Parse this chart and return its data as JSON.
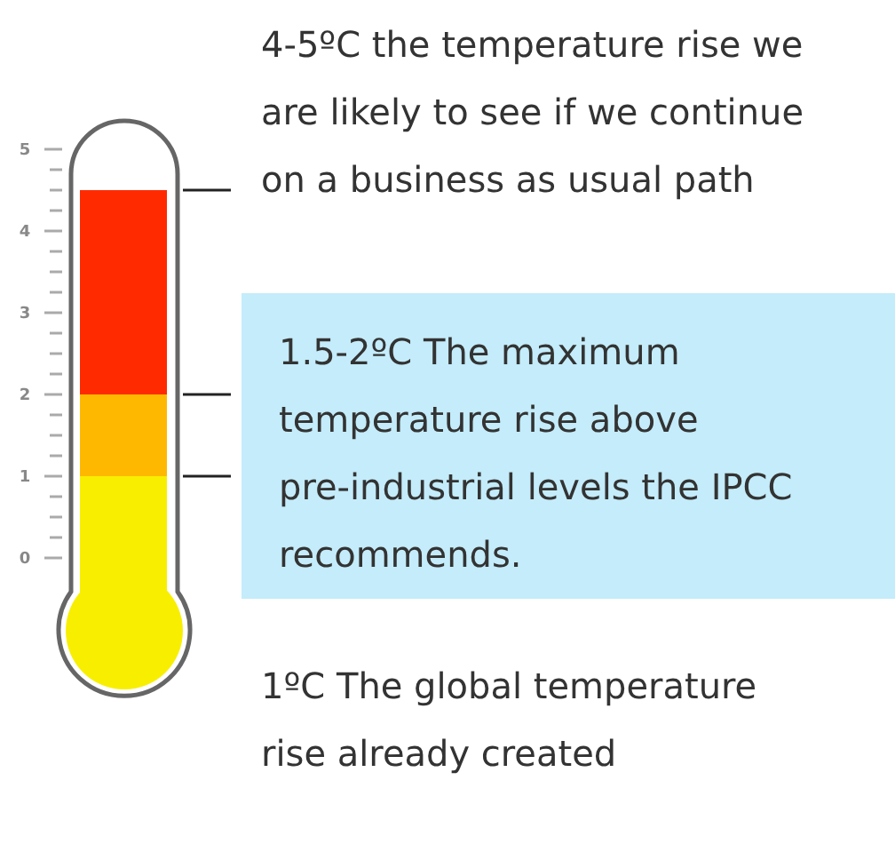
{
  "chart_data": {
    "type": "bar",
    "stacked": true,
    "categories": [
      null
    ],
    "series": [
      {
        "color": "#f8ef00",
        "values": [
          1
        ]
      },
      {
        "color": "#ffb800",
        "values": [
          1
        ]
      },
      {
        "color": "#ff2a00",
        "values": [
          2.5
        ]
      }
    ],
    "ylim": [
      0,
      5
    ],
    "yticks": [
      0,
      {
        "value": 0.25,
        "label": null
      },
      {
        "value": 0.5,
        "label": null
      },
      {
        "value": 0.75,
        "label": null
      },
      1,
      {
        "value": 1.25,
        "label": null
      },
      {
        "value": 1.5,
        "label": null
      },
      {
        "value": 1.75,
        "label": null
      },
      2,
      {
        "value": 2.25,
        "label": null
      },
      {
        "value": 2.5,
        "label": null
      },
      {
        "value": 2.75,
        "label": null
      },
      3,
      {
        "value": 3.25,
        "label": null
      },
      {
        "value": 3.5,
        "label": null
      },
      {
        "value": 3.75,
        "label": null
      },
      4,
      {
        "value": 4.25,
        "label": null
      },
      {
        "value": 4.5,
        "label": null
      },
      {
        "value": 4.75,
        "label": null
      },
      5
    ],
    "grid": false,
    "annotations": [
      "4-5ºC the temperature rise we are likely to see if we continue on a business as usual path",
      "1.5-2ºC  The maximum temperature rise above pre-industrial levels the IPCC recommends.",
      "1ºC  The global temperature rise already created"
    ]
  }
}
